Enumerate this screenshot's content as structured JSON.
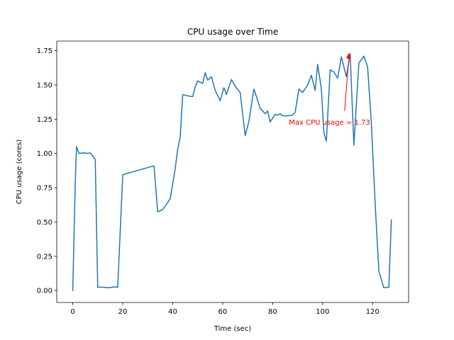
{
  "chart_data": {
    "type": "line",
    "title": "CPU usage over Time",
    "xlabel": "Time (sec)",
    "ylabel": "CPU usage (cores)",
    "xlim": [
      -6.4,
      134.4
    ],
    "ylim": [
      -0.087,
      1.82
    ],
    "xticks": [
      0,
      20,
      40,
      60,
      80,
      100,
      120
    ],
    "yticks": [
      0.0,
      0.25,
      0.5,
      0.75,
      1.0,
      1.25,
      1.5,
      1.75
    ],
    "xtick_labels": [
      "0",
      "20",
      "40",
      "60",
      "80",
      "100",
      "120"
    ],
    "ytick_labels": [
      "0.00",
      "0.25",
      "0.50",
      "0.75",
      "1.00",
      "1.25",
      "1.50",
      "1.75"
    ],
    "grid": false,
    "series": [
      {
        "color": "#1f77b4",
        "x": [
          0,
          1,
          1.5,
          2.5,
          4.5,
          6,
          7,
          9,
          10,
          12,
          14,
          16,
          17,
          18,
          20,
          32.5,
          34,
          36,
          39,
          41,
          42,
          43,
          44,
          46,
          48,
          49,
          50,
          52,
          53,
          54,
          55.5,
          57,
          59,
          60.5,
          61.5,
          63.5,
          65,
          67,
          69,
          70.5,
          72.5,
          73.5,
          75,
          77,
          78,
          79,
          81,
          82,
          83,
          84,
          86,
          88,
          89,
          90.5,
          92,
          94,
          95.5,
          97,
          98,
          99.5,
          100.5,
          101.5,
          103,
          104.5,
          106,
          107.5,
          109.5,
          111,
          112.5,
          114.5,
          116.5,
          118,
          119.5,
          121,
          122.5,
          124.5,
          126.5,
          127.5
        ],
        "y": [
          0.0,
          0.78,
          1.05,
          1.0,
          1.005,
          1.0,
          1.005,
          0.955,
          0.025,
          0.025,
          0.02,
          0.025,
          0.028,
          0.022,
          0.845,
          0.91,
          0.575,
          0.59,
          0.67,
          0.89,
          1.03,
          1.12,
          1.43,
          1.42,
          1.415,
          1.485,
          1.53,
          1.51,
          1.59,
          1.535,
          1.56,
          1.46,
          1.385,
          1.48,
          1.43,
          1.54,
          1.49,
          1.445,
          1.13,
          1.235,
          1.47,
          1.415,
          1.33,
          1.29,
          1.31,
          1.23,
          1.285,
          1.28,
          1.29,
          1.275,
          1.275,
          1.28,
          1.3,
          1.47,
          1.445,
          1.5,
          1.57,
          1.46,
          1.65,
          1.47,
          1.15,
          1.09,
          1.61,
          1.595,
          1.55,
          1.705,
          1.56,
          1.73,
          1.06,
          1.66,
          1.71,
          1.63,
          1.22,
          0.64,
          0.14,
          0.02,
          0.025,
          0.515
        ]
      }
    ],
    "annotation": {
      "text": "Max CPU usage = 1.73",
      "color": "#ff0000",
      "point": [
        110.5,
        1.73
      ],
      "text_anchor": [
        86.5,
        1.23
      ]
    }
  }
}
